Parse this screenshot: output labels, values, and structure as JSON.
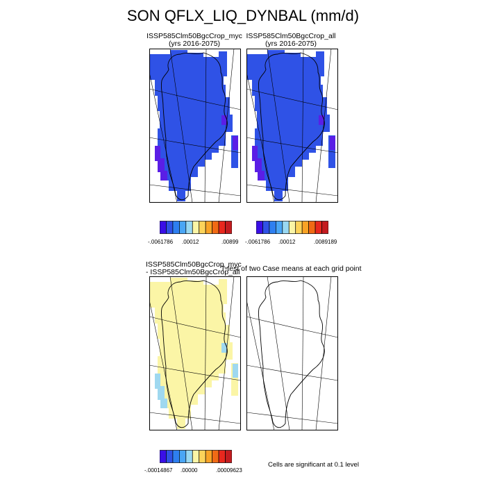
{
  "title": "SON QFLX_LIQ_DYNBAL (mm/d)",
  "panels": [
    {
      "id": "p1",
      "line1": "ISSP585Clm50BgcCrop_myc",
      "line2": "(yrs 2016-2075)",
      "fill": "#2f52e6",
      "edge": "#5a1ee6"
    },
    {
      "id": "p2",
      "line1": "ISSP585Clm50BgcCrop_all",
      "line2": "(yrs 2016-2075)",
      "fill": "#2f52e6",
      "edge": "#5a1ee6"
    },
    {
      "id": "p3",
      "line1": "ISSP585Clm50BgcCrop_myc",
      "line2": "- ISSP585Clm50BgcCrop_all",
      "fill": "#fbf5a6",
      "edge": "#9fd8ef"
    },
    {
      "id": "p4",
      "line1": "T-test of two Case means at each grid point",
      "line2": "",
      "fill": "none",
      "edge": "none"
    }
  ],
  "colorbars": [
    {
      "labels": [
        "-.0061786",
        ".00012",
        ".00899"
      ]
    },
    {
      "labels": [
        "-.0061786",
        ".00012",
        ".0089189"
      ]
    },
    {
      "labels": [
        "-.00014867",
        ".00000",
        ".00009623"
      ]
    }
  ],
  "palette": [
    "#3a0fe6",
    "#2f52e6",
    "#2e7ff0",
    "#4aa6f5",
    "#99d8f2",
    "#fbf5a6",
    "#fcd35a",
    "#f8a326",
    "#f06a15",
    "#e8281e",
    "#c31c20"
  ],
  "significance_note": "Cells are significant at 0.1 level"
}
